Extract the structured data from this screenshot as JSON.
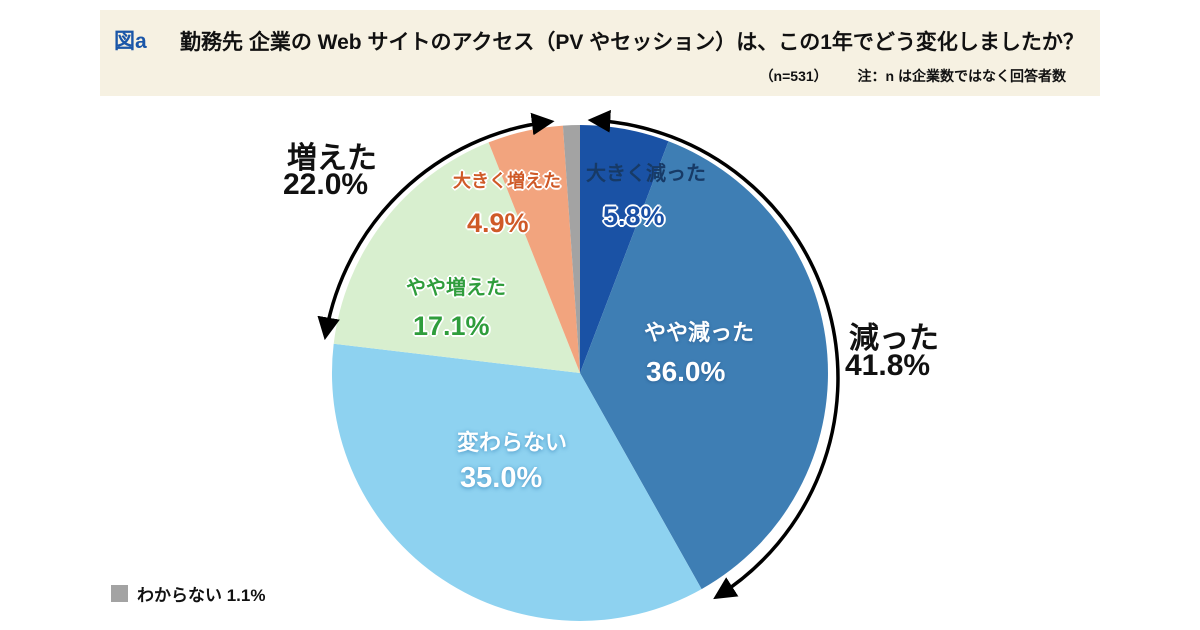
{
  "header": {
    "fig_label": "図a",
    "title": "勤務先 企業の Web サイトのアクセス（PV やセッション）は、この1年でどう変化しましたか？",
    "sample": "（n=531）",
    "note": "注：n は企業数ではなく回答者数"
  },
  "legend": {
    "label": "わからない 1.1%"
  },
  "chart_data": {
    "type": "pie",
    "title": "勤務先 企業の Web サイトのアクセス（PV やセッション）は、この1年でどう変化しましたか？",
    "n": 531,
    "start_angle_deg": 0,
    "direction": "clockwise",
    "slices": [
      {
        "label": "大きく減った",
        "value": 5.8,
        "display": "5.8%",
        "color": "#1a52a5"
      },
      {
        "label": "やや減った",
        "value": 36.0,
        "display": "36.0%",
        "color": "#3e7eb4"
      },
      {
        "label": "変わらない",
        "value": 35.0,
        "display": "35.0%",
        "color": "#8ed2f0"
      },
      {
        "label": "やや増えた",
        "value": 17.1,
        "display": "17.1%",
        "color": "#d8efcf"
      },
      {
        "label": "大きく増えた",
        "value": 4.9,
        "display": "4.9%",
        "color": "#f2a47e"
      },
      {
        "label": "わからない",
        "value": 1.1,
        "display": "1.1%",
        "color": "#a3a3a3"
      }
    ],
    "groups": [
      {
        "label": "減った",
        "display": "41.8%",
        "value": 41.8,
        "members": [
          0,
          1
        ],
        "side": "right"
      },
      {
        "label": "増えた",
        "display": "22.0%",
        "value": 22.0,
        "members": [
          3,
          4
        ],
        "side": "left"
      }
    ]
  }
}
